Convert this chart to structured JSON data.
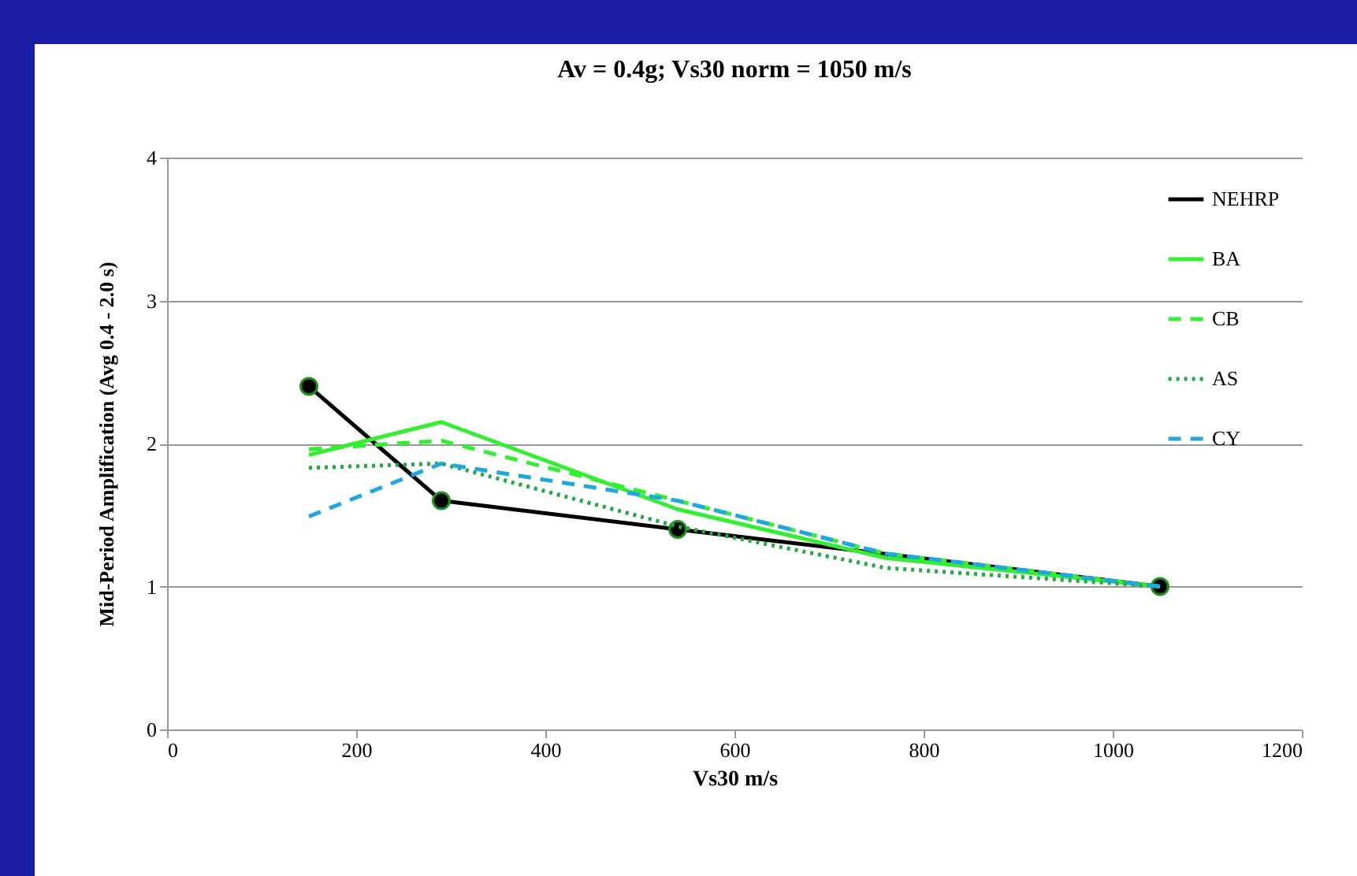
{
  "chart_data": {
    "type": "line",
    "title": "Av = 0.4g; Vs30 norm = 1050 m/s",
    "xlabel": "Vs30 m/s",
    "ylabel": "Mid-Period Amplification  (Avg 0.4 - 2.0 s)",
    "xlim": [
      0,
      1200
    ],
    "xticks": [
      0,
      200,
      400,
      600,
      800,
      1000,
      1200
    ],
    "ylim": [
      0,
      4
    ],
    "yticks": [
      0,
      1,
      2,
      3,
      4
    ],
    "grid": "y",
    "legend": "top right",
    "series": [
      {
        "name": "NEHRP",
        "color": "#000000",
        "marker": "circle",
        "line_style": "solid",
        "x": [
          150,
          290,
          540,
          1050
        ],
        "values": [
          2.4,
          1.6,
          1.4,
          1.0
        ]
      },
      {
        "name": "BA",
        "color": "#33ee33",
        "line_style": "solid",
        "x": [
          150,
          290,
          540,
          760,
          1050
        ],
        "values": [
          1.92,
          2.15,
          1.54,
          1.2,
          1.0
        ]
      },
      {
        "name": "CB",
        "color": "#33ee33",
        "line_style": "dashed",
        "x": [
          150,
          290,
          540,
          760,
          1050
        ],
        "values": [
          1.96,
          2.02,
          1.6,
          1.23,
          1.0
        ]
      },
      {
        "name": "AS",
        "color": "#22aa44",
        "line_style": "dotted",
        "x": [
          150,
          290,
          540,
          760,
          1050
        ],
        "values": [
          1.83,
          1.86,
          1.42,
          1.13,
          1.0
        ]
      },
      {
        "name": "CY",
        "color": "#1ea7e0",
        "line_style": "dashed",
        "x": [
          150,
          290,
          540,
          760,
          1050
        ],
        "values": [
          1.49,
          1.86,
          1.6,
          1.23,
          1.0
        ]
      }
    ]
  }
}
